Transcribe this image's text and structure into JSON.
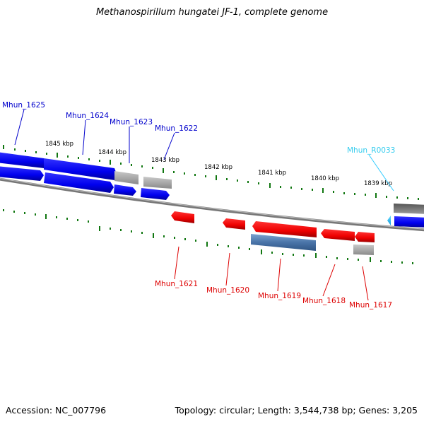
{
  "title": "Methanospirillum hungatei JF-1, complete genome",
  "footer": {
    "accession": "Accession: NC_007796",
    "summary": "Topology: circular; Length: 3,544,738 bp; Genes: 3,205"
  },
  "colors": {
    "forward_gene": "#0000ee",
    "reverse_gene": "#ee0000",
    "rna_gene": "#33ccff",
    "other_feature": "#aaaaaa",
    "tick": "#117711",
    "backbone": "#777777"
  },
  "scale_ticks": [
    "1845 kbp",
    "1844 kbp",
    "1843 kbp",
    "1842 kbp",
    "1841 kbp",
    "1840 kbp",
    "1839 kbp"
  ],
  "gene_labels": [
    {
      "text": "Mhun_1625",
      "strand": "forward"
    },
    {
      "text": "Mhun_1624",
      "strand": "forward"
    },
    {
      "text": "Mhun_1623",
      "strand": "forward"
    },
    {
      "text": "Mhun_1622",
      "strand": "forward"
    },
    {
      "text": "Mhun_R0033",
      "strand": "rna"
    },
    {
      "text": "Mhun_1621",
      "strand": "reverse"
    },
    {
      "text": "Mhun_1620",
      "strand": "reverse"
    },
    {
      "text": "Mhun_1619",
      "strand": "reverse"
    },
    {
      "text": "Mhun_1618",
      "strand": "reverse"
    },
    {
      "text": "Mhun_1617",
      "strand": "reverse"
    }
  ]
}
